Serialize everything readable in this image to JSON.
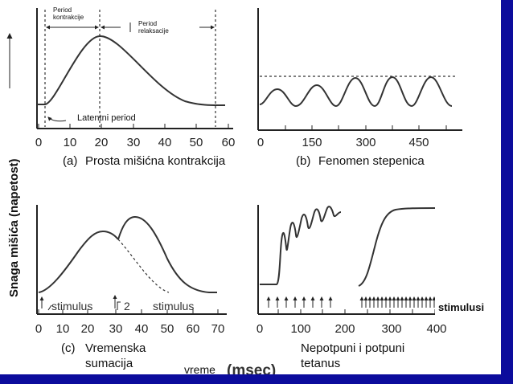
{
  "y_axis_label": "Snaga mišića (napetost)",
  "x_axis_label": {
    "prefix": "vreme",
    "unit": "(msec)"
  },
  "panel_a": {
    "letter": "(a)",
    "title": "Prosta mišićna kontrakcija",
    "ticks": [
      "0",
      "10",
      "20",
      "30",
      "40",
      "50",
      "60"
    ],
    "period_kontrakcije": [
      "Period",
      "kontrakcije"
    ],
    "period_relaksacije": [
      "Period",
      "relaksacije"
    ],
    "latentni_period": "Latentni period"
  },
  "panel_b": {
    "letter": "(b)",
    "title": "Fenomen stepenica",
    "ticks": [
      "0",
      "150",
      "300",
      "450"
    ]
  },
  "panel_c": {
    "letter": "(c)",
    "title_line1": "Vremenska",
    "title_line2": "sumacija",
    "ticks": [
      "0",
      "10",
      "20",
      "30",
      "40",
      "50",
      "60",
      "70"
    ],
    "stimulus_1": "stimulus",
    "stimulus_2_number": "2",
    "stimulus_2": "stimulus"
  },
  "panel_d": {
    "title_line1": "Nepotpuni i potpuni",
    "title_line2": "tetanus",
    "ticks": [
      "0",
      "100",
      "200",
      "300",
      "400"
    ],
    "stimuli_label": "stimulusi"
  }
}
